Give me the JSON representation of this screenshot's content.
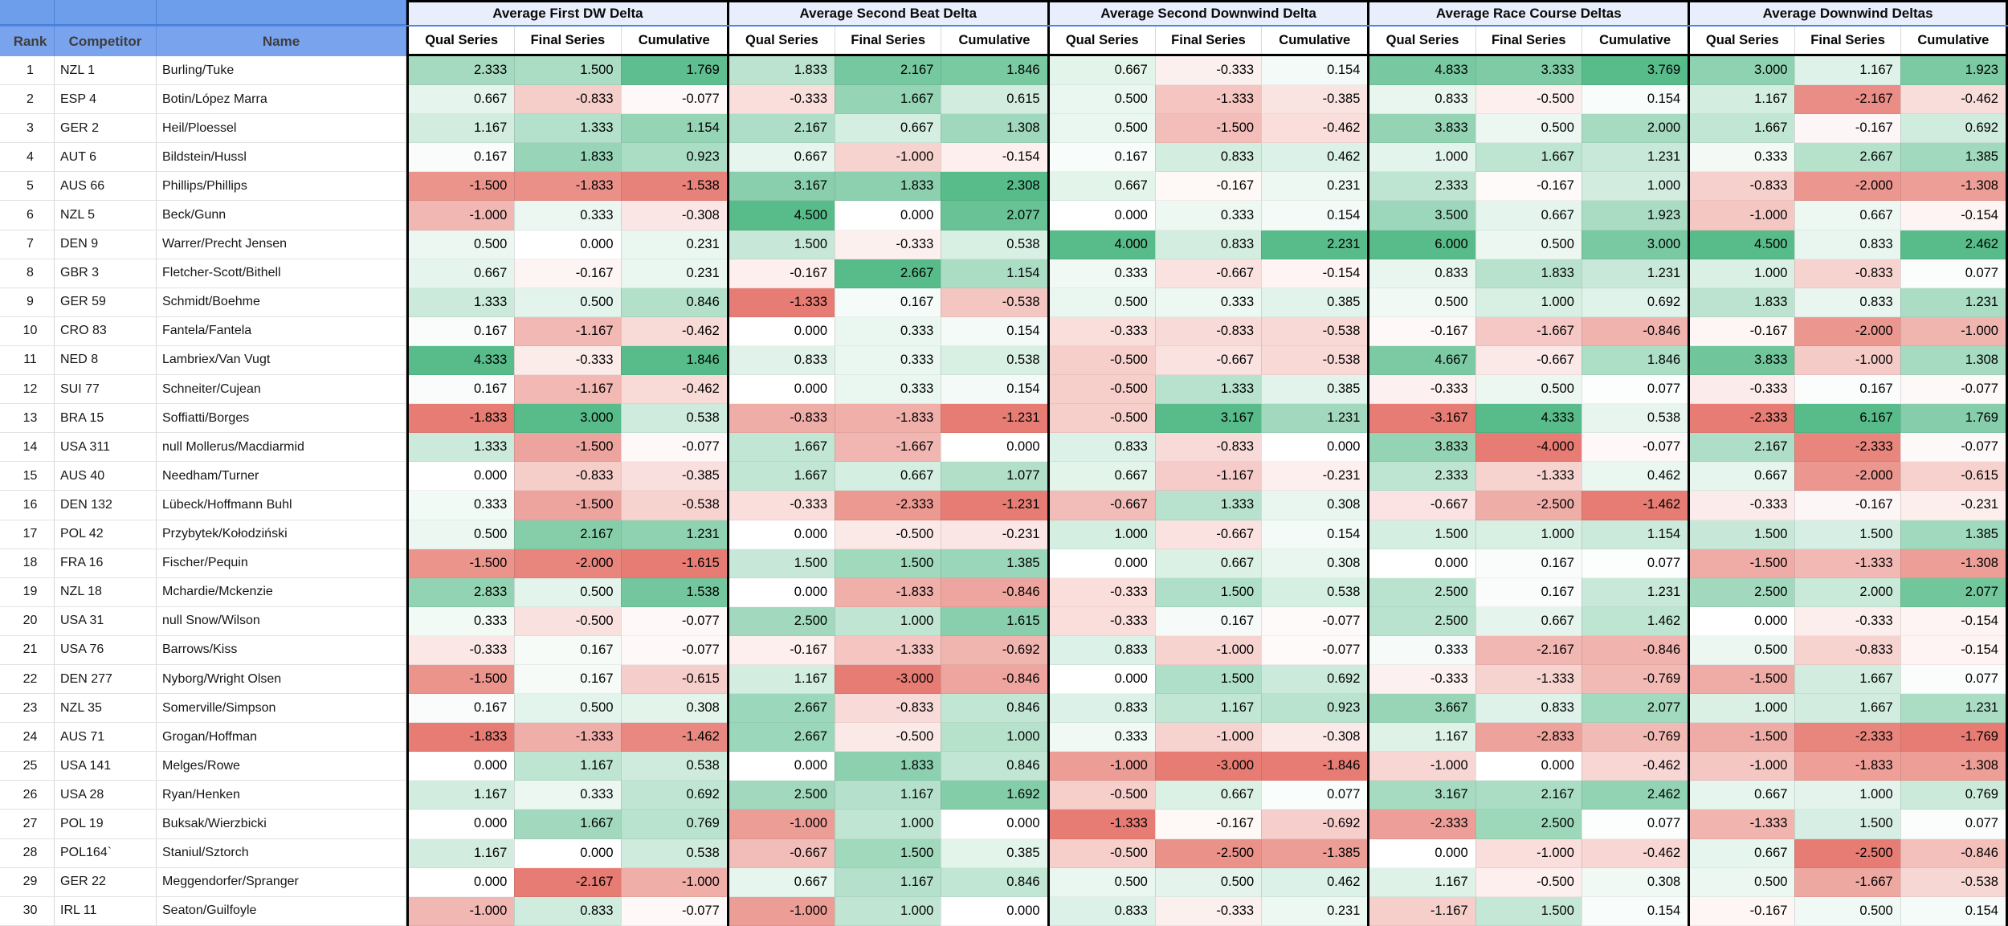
{
  "sheet": {
    "left_headers": [
      "Rank",
      "Competitor",
      "Name"
    ],
    "groups": [
      {
        "title": "Average First DW Delta",
        "columns": [
          "Qual Series",
          "Final Series",
          "Cumulative"
        ]
      },
      {
        "title": "Average Second Beat Delta",
        "columns": [
          "Qual Series",
          "Final Series",
          "Cumulative"
        ]
      },
      {
        "title": "Average Second Downwind Delta",
        "columns": [
          "Qual Series",
          "Final Series",
          "Cumulative"
        ]
      },
      {
        "title": "Average Race Course Deltas",
        "columns": [
          "Qual Series",
          "Final Series",
          "Cumulative"
        ]
      },
      {
        "title": "Average Downwind Deltas",
        "columns": [
          "Qual Series",
          "Final Series",
          "Cumulative"
        ]
      }
    ],
    "colors": {
      "positive": "#57bb8a",
      "negative": "#e67c73",
      "header_blue": "#6d9eeb",
      "header_blue_light": "#7aa3ed",
      "blue_gridline": "#4a7fd4",
      "freeze_line": "#4a86e8",
      "group_header_bg": "#e8eefb",
      "border_black": "#000000",
      "gridline": "#e2e2e2"
    },
    "rows": [
      {
        "rank": 1,
        "competitor": "NZL 1",
        "name": "Burling/Tuke",
        "values": [
          [
            2.333,
            1.5,
            1.769
          ],
          [
            1.833,
            2.167,
            1.846
          ],
          [
            0.667,
            -0.333,
            0.154
          ],
          [
            4.833,
            3.333,
            3.769
          ],
          [
            3.0,
            1.167,
            1.923
          ]
        ]
      },
      {
        "rank": 2,
        "competitor": "ESP 4",
        "name": "Botin/López Marra",
        "values": [
          [
            0.667,
            -0.833,
            -0.077
          ],
          [
            -0.333,
            1.667,
            0.615
          ],
          [
            0.5,
            -1.333,
            -0.385
          ],
          [
            0.833,
            -0.5,
            0.154
          ],
          [
            1.167,
            -2.167,
            -0.462
          ]
        ]
      },
      {
        "rank": 3,
        "competitor": "GER 2",
        "name": "Heil/Ploessel",
        "values": [
          [
            1.167,
            1.333,
            1.154
          ],
          [
            2.167,
            0.667,
            1.308
          ],
          [
            0.5,
            -1.5,
            -0.462
          ],
          [
            3.833,
            0.5,
            2.0
          ],
          [
            1.667,
            -0.167,
            0.692
          ]
        ]
      },
      {
        "rank": 4,
        "competitor": "AUT 6",
        "name": "Bildstein/Hussl",
        "values": [
          [
            0.167,
            1.833,
            0.923
          ],
          [
            0.667,
            -1.0,
            -0.154
          ],
          [
            0.167,
            0.833,
            0.462
          ],
          [
            1.0,
            1.667,
            1.231
          ],
          [
            0.333,
            2.667,
            1.385
          ]
        ]
      },
      {
        "rank": 5,
        "competitor": "AUS 66",
        "name": "Phillips/Phillips",
        "values": [
          [
            -1.5,
            -1.833,
            -1.538
          ],
          [
            3.167,
            1.833,
            2.308
          ],
          [
            0.667,
            -0.167,
            0.231
          ],
          [
            2.333,
            -0.167,
            1.0
          ],
          [
            -0.833,
            -2.0,
            -1.308
          ]
        ]
      },
      {
        "rank": 6,
        "competitor": "NZL 5",
        "name": "Beck/Gunn",
        "values": [
          [
            -1.0,
            0.333,
            -0.308
          ],
          [
            4.5,
            0.0,
            2.077
          ],
          [
            0.0,
            0.333,
            0.154
          ],
          [
            3.5,
            0.667,
            1.923
          ],
          [
            -1.0,
            0.667,
            -0.154
          ]
        ]
      },
      {
        "rank": 7,
        "competitor": "DEN 9",
        "name": "Warrer/Precht Jensen",
        "values": [
          [
            0.5,
            0.0,
            0.231
          ],
          [
            1.5,
            -0.333,
            0.538
          ],
          [
            4.0,
            0.833,
            2.231
          ],
          [
            6.0,
            0.5,
            3.0
          ],
          [
            4.5,
            0.833,
            2.462
          ]
        ]
      },
      {
        "rank": 8,
        "competitor": "GBR 3",
        "name": "Fletcher-Scott/Bithell",
        "values": [
          [
            0.667,
            -0.167,
            0.231
          ],
          [
            -0.167,
            2.667,
            1.154
          ],
          [
            0.333,
            -0.667,
            -0.154
          ],
          [
            0.833,
            1.833,
            1.231
          ],
          [
            1.0,
            -0.833,
            0.077
          ]
        ]
      },
      {
        "rank": 9,
        "competitor": "GER 59",
        "name": "Schmidt/Boehme",
        "values": [
          [
            1.333,
            0.5,
            0.846
          ],
          [
            -1.333,
            0.167,
            -0.538
          ],
          [
            0.5,
            0.333,
            0.385
          ],
          [
            0.5,
            1.0,
            0.692
          ],
          [
            1.833,
            0.833,
            1.231
          ]
        ]
      },
      {
        "rank": 10,
        "competitor": "CRO 83",
        "name": "Fantela/Fantela",
        "values": [
          [
            0.167,
            -1.167,
            -0.462
          ],
          [
            0.0,
            0.333,
            0.154
          ],
          [
            -0.333,
            -0.833,
            -0.538
          ],
          [
            -0.167,
            -1.667,
            -0.846
          ],
          [
            -0.167,
            -2.0,
            -1.0
          ]
        ]
      },
      {
        "rank": 11,
        "competitor": "NED 8",
        "name": "Lambriex/Van Vugt",
        "values": [
          [
            4.333,
            -0.333,
            1.846
          ],
          [
            0.833,
            0.333,
            0.538
          ],
          [
            -0.5,
            -0.667,
            -0.538
          ],
          [
            4.667,
            -0.667,
            1.846
          ],
          [
            3.833,
            -1.0,
            1.308
          ]
        ]
      },
      {
        "rank": 12,
        "competitor": "SUI 77",
        "name": "Schneiter/Cujean",
        "values": [
          [
            0.167,
            -1.167,
            -0.462
          ],
          [
            0.0,
            0.333,
            0.154
          ],
          [
            -0.5,
            1.333,
            0.385
          ],
          [
            -0.333,
            0.5,
            0.077
          ],
          [
            -0.333,
            0.167,
            -0.077
          ]
        ]
      },
      {
        "rank": 13,
        "competitor": "BRA 15",
        "name": "Soffiatti/Borges",
        "values": [
          [
            -1.833,
            3.0,
            0.538
          ],
          [
            -0.833,
            -1.833,
            -1.231
          ],
          [
            -0.5,
            3.167,
            1.231
          ],
          [
            -3.167,
            4.333,
            0.538
          ],
          [
            -2.333,
            6.167,
            1.769
          ]
        ]
      },
      {
        "rank": 14,
        "competitor": "USA 311",
        "name": "null Mollerus/Macdiarmid",
        "values": [
          [
            1.333,
            -1.5,
            -0.077
          ],
          [
            1.667,
            -1.667,
            0.0
          ],
          [
            0.833,
            -0.833,
            0.0
          ],
          [
            3.833,
            -4.0,
            -0.077
          ],
          [
            2.167,
            -2.333,
            -0.077
          ]
        ]
      },
      {
        "rank": 15,
        "competitor": "AUS 40",
        "name": "Needham/Turner",
        "values": [
          [
            0.0,
            -0.833,
            -0.385
          ],
          [
            1.667,
            0.667,
            1.077
          ],
          [
            0.667,
            -1.167,
            -0.231
          ],
          [
            2.333,
            -1.333,
            0.462
          ],
          [
            0.667,
            -2.0,
            -0.615
          ]
        ]
      },
      {
        "rank": 16,
        "competitor": "DEN 132",
        "name": "Lübeck/Hoffmann Buhl",
        "values": [
          [
            0.333,
            -1.5,
            -0.538
          ],
          [
            -0.333,
            -2.333,
            -1.231
          ],
          [
            -0.667,
            1.333,
            0.308
          ],
          [
            -0.667,
            -2.5,
            -1.462
          ],
          [
            -0.333,
            -0.167,
            -0.231
          ]
        ]
      },
      {
        "rank": 17,
        "competitor": "POL 42",
        "name": "Przybytek/Kołodziński",
        "values": [
          [
            0.5,
            2.167,
            1.231
          ],
          [
            0.0,
            -0.5,
            -0.231
          ],
          [
            1.0,
            -0.667,
            0.154
          ],
          [
            1.5,
            1.0,
            1.154
          ],
          [
            1.5,
            1.5,
            1.385
          ]
        ]
      },
      {
        "rank": 18,
        "competitor": "FRA 16",
        "name": "Fischer/Pequin",
        "values": [
          [
            -1.5,
            -2.0,
            -1.615
          ],
          [
            1.5,
            1.5,
            1.385
          ],
          [
            0.0,
            0.667,
            0.308
          ],
          [
            0.0,
            0.167,
            0.077
          ],
          [
            -1.5,
            -1.333,
            -1.308
          ]
        ]
      },
      {
        "rank": 19,
        "competitor": "NZL 18",
        "name": "Mchardie/Mckenzie",
        "values": [
          [
            2.833,
            0.5,
            1.538
          ],
          [
            0.0,
            -1.833,
            -0.846
          ],
          [
            -0.333,
            1.5,
            0.538
          ],
          [
            2.5,
            0.167,
            1.231
          ],
          [
            2.5,
            2.0,
            2.077
          ]
        ]
      },
      {
        "rank": 20,
        "competitor": "USA 31",
        "name": "null Snow/Wilson",
        "values": [
          [
            0.333,
            -0.5,
            -0.077
          ],
          [
            2.5,
            1.0,
            1.615
          ],
          [
            -0.333,
            0.167,
            -0.077
          ],
          [
            2.5,
            0.667,
            1.462
          ],
          [
            0.0,
            -0.333,
            -0.154
          ]
        ]
      },
      {
        "rank": 21,
        "competitor": "USA 76",
        "name": "Barrows/Kiss",
        "values": [
          [
            -0.333,
            0.167,
            -0.077
          ],
          [
            -0.167,
            -1.333,
            -0.692
          ],
          [
            0.833,
            -1.0,
            -0.077
          ],
          [
            0.333,
            -2.167,
            -0.846
          ],
          [
            0.5,
            -0.833,
            -0.154
          ]
        ]
      },
      {
        "rank": 22,
        "competitor": "DEN 277",
        "name": "Nyborg/Wright Olsen",
        "values": [
          [
            -1.5,
            0.167,
            -0.615
          ],
          [
            1.167,
            -3.0,
            -0.846
          ],
          [
            0.0,
            1.5,
            0.692
          ],
          [
            -0.333,
            -1.333,
            -0.769
          ],
          [
            -1.5,
            1.667,
            0.077
          ]
        ]
      },
      {
        "rank": 23,
        "competitor": "NZL 35",
        "name": "Somerville/Simpson",
        "values": [
          [
            0.167,
            0.5,
            0.308
          ],
          [
            2.667,
            -0.833,
            0.846
          ],
          [
            0.833,
            1.167,
            0.923
          ],
          [
            3.667,
            0.833,
            2.077
          ],
          [
            1.0,
            1.667,
            1.231
          ]
        ]
      },
      {
        "rank": 24,
        "competitor": "AUS 71",
        "name": "Grogan/Hoffman",
        "values": [
          [
            -1.833,
            -1.333,
            -1.462
          ],
          [
            2.667,
            -0.5,
            1.0
          ],
          [
            0.333,
            -1.0,
            -0.308
          ],
          [
            1.167,
            -2.833,
            -0.769
          ],
          [
            -1.5,
            -2.333,
            -1.769
          ]
        ]
      },
      {
        "rank": 25,
        "competitor": "USA 141",
        "name": "Melges/Rowe",
        "values": [
          [
            0.0,
            1.167,
            0.538
          ],
          [
            0.0,
            1.833,
            0.846
          ],
          [
            -1.0,
            -3.0,
            -1.846
          ],
          [
            -1.0,
            0.0,
            -0.462
          ],
          [
            -1.0,
            -1.833,
            -1.308
          ]
        ]
      },
      {
        "rank": 26,
        "competitor": "USA 28",
        "name": "Ryan/Henken",
        "values": [
          [
            1.167,
            0.333,
            0.692
          ],
          [
            2.5,
            1.167,
            1.692
          ],
          [
            -0.5,
            0.667,
            0.077
          ],
          [
            3.167,
            2.167,
            2.462
          ],
          [
            0.667,
            1.0,
            0.769
          ]
        ]
      },
      {
        "rank": 27,
        "competitor": "POL 19",
        "name": "Buksak/Wierzbicki",
        "values": [
          [
            0.0,
            1.667,
            0.769
          ],
          [
            -1.0,
            1.0,
            0.0
          ],
          [
            -1.333,
            -0.167,
            -0.692
          ],
          [
            -2.333,
            2.5,
            0.077
          ],
          [
            -1.333,
            1.5,
            0.077
          ]
        ]
      },
      {
        "rank": 28,
        "competitor": "POL164`",
        "name": "Staniul/Sztorch",
        "values": [
          [
            1.167,
            0.0,
            0.538
          ],
          [
            -0.667,
            1.5,
            0.385
          ],
          [
            -0.5,
            -2.5,
            -1.385
          ],
          [
            0.0,
            -1.0,
            -0.462
          ],
          [
            0.667,
            -2.5,
            -0.846
          ]
        ]
      },
      {
        "rank": 29,
        "competitor": "GER 22",
        "name": "Meggendorfer/Spranger",
        "values": [
          [
            0.0,
            -2.167,
            -1.0
          ],
          [
            0.667,
            1.167,
            0.846
          ],
          [
            0.5,
            0.5,
            0.462
          ],
          [
            1.167,
            -0.5,
            0.308
          ],
          [
            0.5,
            -1.667,
            -0.538
          ]
        ]
      },
      {
        "rank": 30,
        "competitor": "IRL 11",
        "name": "Seaton/Guilfoyle",
        "values": [
          [
            -1.0,
            0.833,
            -0.077
          ],
          [
            -1.0,
            1.0,
            0.0
          ],
          [
            0.833,
            -0.333,
            0.231
          ],
          [
            -1.167,
            1.5,
            0.154
          ],
          [
            -0.167,
            0.5,
            0.154
          ]
        ]
      }
    ]
  }
}
